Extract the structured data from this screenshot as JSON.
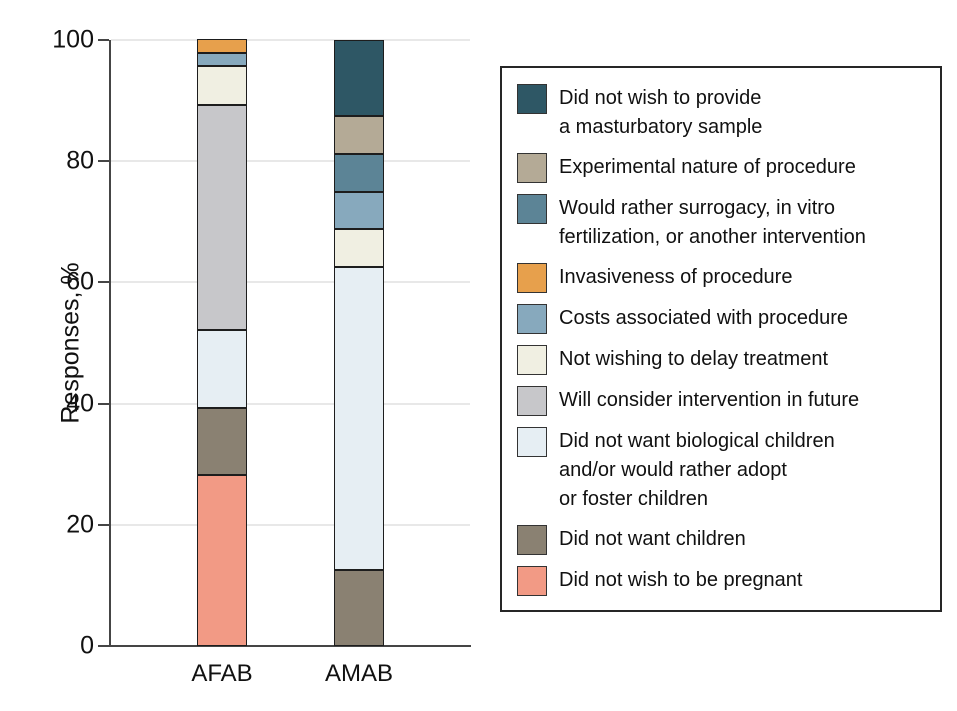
{
  "chart_data": {
    "type": "stacked-bar",
    "title": "",
    "xlabel": "",
    "ylabel": "Responses, %",
    "ylim": [
      0,
      100
    ],
    "yticks": [
      0,
      20,
      40,
      60,
      80,
      100
    ],
    "grid": "horizontal",
    "legend_position": "right",
    "categories": [
      "AFAB",
      "AMAB"
    ],
    "series": [
      {
        "name": "Did not wish to provide a masturbatory sample",
        "legend_lines": [
          "Did not wish to provide",
          "a masturbatory sample"
        ],
        "color": "#2e5765",
        "values": [
          0,
          12.5
        ]
      },
      {
        "name": "Experimental nature of procedure",
        "legend_lines": [
          "Experimental nature of procedure"
        ],
        "color": "#b4aa96",
        "values": [
          0,
          6.25
        ]
      },
      {
        "name": "Would rather surrogacy, in vitro fertilization, or another intervention",
        "legend_lines": [
          "Would rather surrogacy, in vitro",
          "fertilization, or another intervention"
        ],
        "color": "#5c8496",
        "values": [
          0,
          6.25
        ]
      },
      {
        "name": "Invasiveness of procedure",
        "legend_lines": [
          "Invasiveness of procedure"
        ],
        "color": "#e7a04c",
        "values": [
          2.2,
          0
        ]
      },
      {
        "name": "Costs associated with procedure",
        "legend_lines": [
          "Costs associated with procedure"
        ],
        "color": "#87a9bd",
        "values": [
          2.2,
          6.25
        ]
      },
      {
        "name": "Not wishing to delay treatment",
        "legend_lines": [
          "Not wishing to delay treatment"
        ],
        "color": "#f0efe2",
        "values": [
          6.5,
          6.25
        ]
      },
      {
        "name": "Will consider intervention in future",
        "legend_lines": [
          "Will consider intervention in future"
        ],
        "color": "#c7c7ca",
        "values": [
          37.0,
          0
        ]
      },
      {
        "name": "Did not want biological children and/or would rather adopt or foster children",
        "legend_lines": [
          "Did not want biological children",
          "and/or would rather adopt",
          "or foster children"
        ],
        "color": "#e6eef3",
        "values": [
          13.0,
          50.0
        ]
      },
      {
        "name": "Did not want children",
        "legend_lines": [
          "Did not want children"
        ],
        "color": "#8a8172",
        "values": [
          10.9,
          12.5
        ]
      },
      {
        "name": "Did not wish to be pregnant",
        "legend_lines": [
          "Did not wish to be pregnant"
        ],
        "color": "#f29a85",
        "values": [
          28.3,
          0
        ]
      }
    ]
  }
}
